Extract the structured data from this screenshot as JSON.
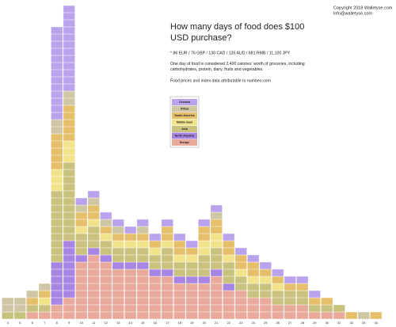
{
  "chart_data": {
    "type": "stacked-histogram",
    "title": "How many days of food does $100 USD purchase?",
    "copyright": [
      "Copyright 2018 Walletyse.com",
      "info@walletyse.com"
    ],
    "notes": [
      "* 86 EUR / 76 GBP / 130 CAD / 135 AUD / 681 RMB / 11,100 JPY",
      "One day of food is considered 2,400 calories' worth of groceries, including carbohydrates, protein, dairy, fruits and vegetables.",
      "Food prices and index data attributable to numbeo.com"
    ],
    "categories": [
      4,
      5,
      6,
      7,
      8,
      9,
      10,
      11,
      12,
      13,
      14,
      15,
      16,
      17,
      18,
      19,
      20,
      21,
      22,
      23,
      24,
      25,
      26,
      27,
      28,
      29,
      30,
      31,
      32,
      33,
      34
    ],
    "series": [
      {
        "name": "Europe",
        "color": "#e9aa9b",
        "values": [
          0,
          0,
          1,
          1,
          2,
          3,
          8,
          9,
          8,
          7,
          7,
          7,
          6,
          6,
          5,
          5,
          5,
          6,
          4,
          4,
          3,
          3,
          2,
          2,
          2,
          1,
          1,
          1,
          0,
          0,
          0
        ]
      },
      {
        "name": "North America",
        "color": "#a685e3",
        "values": [
          0,
          0,
          0,
          0,
          6,
          8,
          1,
          1,
          1,
          1,
          1,
          1,
          1,
          1,
          1,
          1,
          1,
          1,
          1,
          0,
          0,
          0,
          0,
          0,
          0,
          0,
          0,
          0,
          0,
          0,
          0
        ]
      },
      {
        "name": "Asia",
        "color": "#c9c27f",
        "values": [
          1,
          1,
          1,
          1,
          10,
          11,
          3,
          3,
          2,
          2,
          2,
          2,
          2,
          3,
          2,
          2,
          3,
          3,
          3,
          2,
          2,
          2,
          2,
          2,
          2,
          1,
          1,
          1,
          0,
          0,
          0
        ]
      },
      {
        "name": "Middle East",
        "color": "#f2e38a",
        "values": [
          0,
          0,
          0,
          1,
          3,
          3,
          1,
          1,
          1,
          1,
          1,
          1,
          1,
          1,
          1,
          1,
          2,
          2,
          1,
          1,
          1,
          1,
          1,
          0,
          0,
          0,
          0,
          0,
          0,
          0,
          0
        ]
      },
      {
        "name": "South America",
        "color": "#e6bf6a",
        "values": [
          0,
          0,
          1,
          1,
          5,
          5,
          2,
          2,
          1,
          1,
          1,
          1,
          1,
          2,
          2,
          1,
          2,
          2,
          2,
          2,
          2,
          1,
          1,
          1,
          1,
          1,
          1,
          0,
          1,
          0,
          1
        ]
      },
      {
        "name": "Africa",
        "color": "#cfc6a4",
        "values": [
          2,
          2,
          1,
          1,
          2,
          2,
          1,
          1,
          1,
          1,
          0,
          1,
          0,
          0,
          0,
          0,
          0,
          1,
          0,
          0,
          0,
          0,
          0,
          0,
          0,
          0,
          0,
          0,
          0,
          1,
          0
        ]
      },
      {
        "name": "Oceania",
        "color": "#b9a3ec",
        "values": [
          0,
          0,
          0,
          0,
          13,
          12,
          1,
          1,
          1,
          1,
          1,
          1,
          1,
          1,
          1,
          1,
          1,
          1,
          1,
          1,
          1,
          1,
          1,
          1,
          1,
          1,
          0,
          0,
          0,
          0,
          0
        ]
      }
    ]
  }
}
